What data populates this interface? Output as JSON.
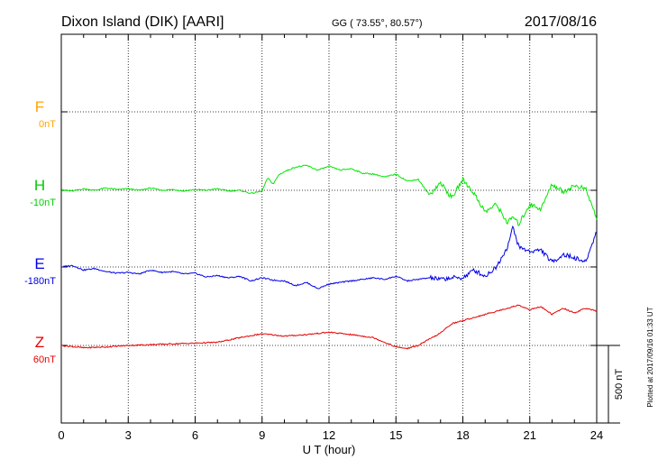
{
  "header": {
    "station": "Dixon Island (DIK)  [AARI]",
    "coords": "GG ( 73.55°,  80.57°)",
    "date": "2017/08/16"
  },
  "footer": {
    "plotted": "Plotted at 2017/09/16 01:33 UT"
  },
  "scale": {
    "label": "500 nT",
    "value_nT": 500
  },
  "chart_data": {
    "type": "line",
    "title": "",
    "xlabel": "U T (hour)",
    "ylabel": "",
    "xlim": [
      0,
      24
    ],
    "x_ticks": [
      "0",
      "3",
      "6",
      "9",
      "12",
      "15",
      "18",
      "21",
      "24"
    ],
    "grid": true,
    "colors": {
      "F": "#ffa500",
      "H": "#00e600",
      "E": "#0000e6",
      "Z": "#e60000"
    },
    "series": [
      {
        "name": "F",
        "offset_label": "0nT",
        "values": []
      },
      {
        "name": "H",
        "offset_label": "-10nT",
        "x": [
          0,
          0.5,
          1,
          1.5,
          2,
          2.5,
          3,
          3.5,
          4,
          4.5,
          5,
          5.5,
          6,
          6.5,
          7,
          7.5,
          8,
          8.5,
          9,
          9.25,
          9.5,
          9.75,
          10,
          10.5,
          11,
          11.5,
          12,
          12.5,
          13,
          13.5,
          14,
          14.5,
          15,
          15.5,
          16,
          16.5,
          17,
          17.5,
          18,
          18.5,
          19,
          19.5,
          20,
          20.25,
          20.5,
          21,
          21.5,
          22,
          22.5,
          23,
          23.5,
          24
        ],
        "values": [
          -10,
          -15,
          0,
          -10,
          5,
          -5,
          0,
          -10,
          5,
          -10,
          -5,
          -15,
          -5,
          -10,
          0,
          -15,
          -10,
          -30,
          -15,
          70,
          30,
          90,
          110,
          140,
          150,
          120,
          145,
          120,
          130,
          100,
          95,
          75,
          95,
          50,
          60,
          -40,
          40,
          -60,
          60,
          -30,
          -150,
          -100,
          -220,
          -180,
          -230,
          -100,
          -130,
          30,
          -20,
          20,
          0,
          -190
        ]
      },
      {
        "name": "E",
        "offset_label": "-180nT",
        "x": [
          0,
          0.5,
          1,
          1.5,
          2,
          2.5,
          3,
          3.5,
          4,
          4.5,
          5,
          5.5,
          6,
          6.5,
          7,
          7.5,
          8,
          8.5,
          9,
          9.5,
          10,
          10.5,
          11,
          11.5,
          12,
          12.5,
          13,
          13.5,
          14,
          14.5,
          15,
          15.5,
          16,
          16.5,
          17,
          17.5,
          18,
          18.5,
          19,
          19.5,
          20,
          20.25,
          20.5,
          21,
          21.5,
          22,
          22.5,
          23,
          23.5,
          24
        ],
        "values": [
          -180,
          -170,
          -200,
          -190,
          -210,
          -220,
          -215,
          -225,
          -200,
          -215,
          -210,
          -225,
          -220,
          -245,
          -235,
          -250,
          -240,
          -270,
          -250,
          -265,
          -270,
          -300,
          -280,
          -320,
          -290,
          -280,
          -270,
          -260,
          -250,
          -260,
          -240,
          -270,
          -260,
          -250,
          -260,
          -250,
          -250,
          -200,
          -240,
          -180,
          -50,
          80,
          -50,
          -80,
          -70,
          -150,
          -100,
          -120,
          -150,
          50
        ]
      },
      {
        "name": "Z",
        "offset_label": "60nT",
        "x": [
          0,
          1,
          2,
          3,
          4,
          5,
          6,
          7,
          8,
          9,
          10,
          11,
          12,
          13,
          14,
          15,
          15.5,
          16,
          17,
          17.5,
          18,
          19,
          20,
          20.5,
          21,
          21.5,
          22,
          22.5,
          23,
          23.5,
          24
        ],
        "values": [
          40,
          25,
          30,
          40,
          45,
          50,
          55,
          60,
          90,
          115,
          100,
          110,
          125,
          110,
          90,
          30,
          20,
          40,
          120,
          180,
          200,
          240,
          280,
          300,
          270,
          290,
          240,
          280,
          250,
          280,
          260
        ]
      }
    ]
  }
}
